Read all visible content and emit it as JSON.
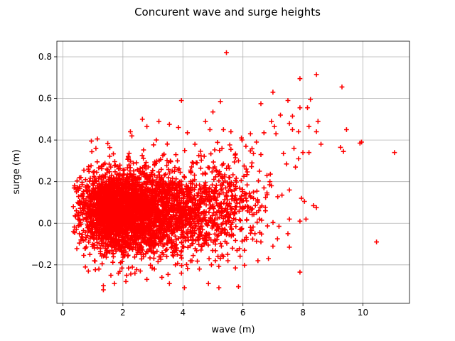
{
  "chart_data": {
    "type": "scatter",
    "title": "Concurent wave and surge heights",
    "xlabel": "wave (m)",
    "ylabel": "surge (m)",
    "xlim": [
      -0.2,
      11.55
    ],
    "ylim": [
      -0.385,
      0.875
    ],
    "xticks": [
      0,
      2,
      4,
      6,
      8,
      10
    ],
    "yticks": [
      -0.2,
      0.0,
      0.2,
      0.4,
      0.6,
      0.8
    ],
    "xtick_labels": [
      "0",
      "2",
      "4",
      "6",
      "8",
      "10"
    ],
    "ytick_labels": [
      "−0.2",
      "0.0",
      "0.2",
      "0.4",
      "0.6",
      "0.8"
    ],
    "grid": true,
    "legend": "none",
    "marker": "+",
    "color": "#ff0000",
    "series": [
      {
        "points": [
          [
            5.45,
            0.82
          ],
          [
            8.45,
            0.715
          ],
          [
            7.9,
            0.695
          ],
          [
            9.3,
            0.655
          ],
          [
            7.0,
            0.63
          ],
          [
            8.25,
            0.595
          ],
          [
            3.95,
            0.59
          ],
          [
            5.25,
            0.585
          ],
          [
            7.5,
            0.59
          ],
          [
            6.6,
            0.575
          ],
          [
            7.9,
            0.555
          ],
          [
            8.15,
            0.555
          ],
          [
            7.25,
            0.52
          ],
          [
            5.0,
            0.535
          ],
          [
            7.65,
            0.515
          ],
          [
            8.5,
            0.49
          ],
          [
            6.95,
            0.49
          ],
          [
            7.55,
            0.48
          ],
          [
            7.05,
            0.465
          ],
          [
            9.45,
            0.45
          ],
          [
            8.2,
            0.465
          ],
          [
            7.65,
            0.45
          ],
          [
            7.85,
            0.44
          ],
          [
            6.7,
            0.435
          ],
          [
            7.1,
            0.43
          ],
          [
            8.45,
            0.44
          ],
          [
            5.35,
            0.45
          ],
          [
            9.25,
            0.365
          ],
          [
            9.35,
            0.345
          ],
          [
            9.95,
            0.39
          ],
          [
            9.9,
            0.385
          ],
          [
            11.05,
            0.34
          ],
          [
            8.0,
            0.34
          ],
          [
            8.2,
            0.34
          ],
          [
            8.6,
            0.38
          ],
          [
            7.7,
            0.36
          ],
          [
            7.35,
            0.335
          ],
          [
            7.85,
            0.31
          ],
          [
            7.45,
            0.285
          ],
          [
            7.75,
            0.27
          ],
          [
            6.95,
            0.18
          ],
          [
            7.3,
            0.135
          ],
          [
            7.55,
            0.16
          ],
          [
            7.95,
            0.12
          ],
          [
            8.05,
            0.105
          ],
          [
            8.35,
            0.085
          ],
          [
            8.45,
            0.075
          ],
          [
            7.9,
            0.01
          ],
          [
            8.1,
            0.02
          ],
          [
            7.55,
            0.02
          ],
          [
            7.2,
            -0.015
          ],
          [
            7.5,
            -0.05
          ],
          [
            7.15,
            -0.075
          ],
          [
            7.0,
            -0.11
          ],
          [
            7.55,
            -0.115
          ],
          [
            6.85,
            -0.17
          ],
          [
            6.5,
            -0.18
          ],
          [
            7.9,
            -0.235
          ],
          [
            10.45,
            -0.09
          ],
          [
            6.05,
            -0.13
          ],
          [
            5.75,
            -0.215
          ],
          [
            5.2,
            -0.31
          ],
          [
            5.85,
            -0.305
          ],
          [
            4.85,
            -0.29
          ],
          [
            4.05,
            -0.31
          ],
          [
            3.55,
            -0.29
          ],
          [
            1.35,
            -0.3
          ],
          [
            1.35,
            -0.32
          ],
          [
            0.75,
            -0.21
          ],
          [
            0.85,
            -0.23
          ],
          [
            0.35,
            0.08
          ],
          [
            0.45,
            -0.03
          ],
          [
            0.5,
            0.1
          ],
          [
            0.55,
            0.175
          ],
          [
            0.6,
            0.22
          ],
          [
            0.7,
            0.255
          ],
          [
            0.85,
            0.26
          ],
          [
            0.95,
            0.395
          ],
          [
            1.15,
            0.405
          ],
          [
            1.1,
            0.36
          ],
          [
            2.3,
            0.42
          ],
          [
            2.65,
            0.5
          ],
          [
            2.8,
            0.465
          ],
          [
            2.25,
            0.44
          ],
          [
            3.2,
            0.49
          ],
          [
            3.55,
            0.475
          ],
          [
            3.85,
            0.46
          ],
          [
            4.15,
            0.435
          ],
          [
            4.4,
            0.38
          ],
          [
            4.75,
            0.49
          ],
          [
            4.9,
            0.45
          ],
          [
            5.6,
            0.44
          ],
          [
            5.95,
            0.41
          ],
          [
            6.25,
            0.43
          ],
          [
            6.45,
            0.39
          ],
          [
            6.1,
            0.37
          ],
          [
            6.35,
            0.335
          ],
          [
            5.6,
            0.355
          ],
          [
            5.3,
            0.36
          ],
          [
            5.85,
            0.3
          ],
          [
            6.6,
            0.33
          ],
          [
            6.3,
            0.29
          ],
          [
            6.55,
            0.25
          ],
          [
            6.8,
            0.23
          ],
          [
            6.9,
            0.2
          ],
          [
            6.7,
            0.17
          ],
          [
            6.35,
            0.15
          ],
          [
            6.1,
            0.12
          ],
          [
            6.5,
            0.1
          ],
          [
            6.75,
            0.06
          ],
          [
            6.55,
            0.02
          ],
          [
            6.25,
            -0.02
          ],
          [
            6.4,
            -0.05
          ],
          [
            6.05,
            -0.08
          ],
          [
            6.6,
            -0.09
          ],
          [
            5.65,
            -0.12
          ],
          [
            5.35,
            -0.16
          ],
          [
            5.5,
            -0.18
          ],
          [
            4.95,
            -0.2
          ],
          [
            4.55,
            -0.22
          ],
          [
            4.3,
            -0.18
          ],
          [
            3.95,
            -0.24
          ],
          [
            3.75,
            -0.2
          ],
          [
            3.3,
            -0.26
          ],
          [
            3.05,
            -0.22
          ],
          [
            2.8,
            -0.27
          ],
          [
            2.4,
            -0.24
          ],
          [
            2.1,
            -0.28
          ],
          [
            1.85,
            -0.24
          ],
          [
            1.6,
            -0.25
          ],
          [
            1.2,
            -0.22
          ],
          [
            1.05,
            -0.18
          ],
          [
            0.9,
            -0.15
          ],
          [
            0.75,
            -0.12
          ],
          [
            0.6,
            -0.08
          ],
          [
            0.55,
            -0.05
          ],
          [
            0.5,
            0.02
          ],
          [
            0.6,
            0.05
          ],
          [
            0.45,
            0.06
          ],
          [
            0.65,
            0.13
          ]
        ]
      }
    ],
    "dense_clusters": [
      {
        "cx": 1.6,
        "cy": 0.06,
        "sx": 0.5,
        "sy": 0.085,
        "n": 1500
      },
      {
        "cx": 2.5,
        "cy": 0.05,
        "sx": 0.7,
        "sy": 0.1,
        "n": 1200
      },
      {
        "cx": 3.6,
        "cy": 0.06,
        "sx": 0.75,
        "sy": 0.105,
        "n": 700
      },
      {
        "cx": 4.8,
        "cy": 0.08,
        "sx": 0.75,
        "sy": 0.11,
        "n": 350
      },
      {
        "cx": 5.8,
        "cy": 0.1,
        "sx": 0.6,
        "sy": 0.12,
        "n": 120
      }
    ]
  }
}
